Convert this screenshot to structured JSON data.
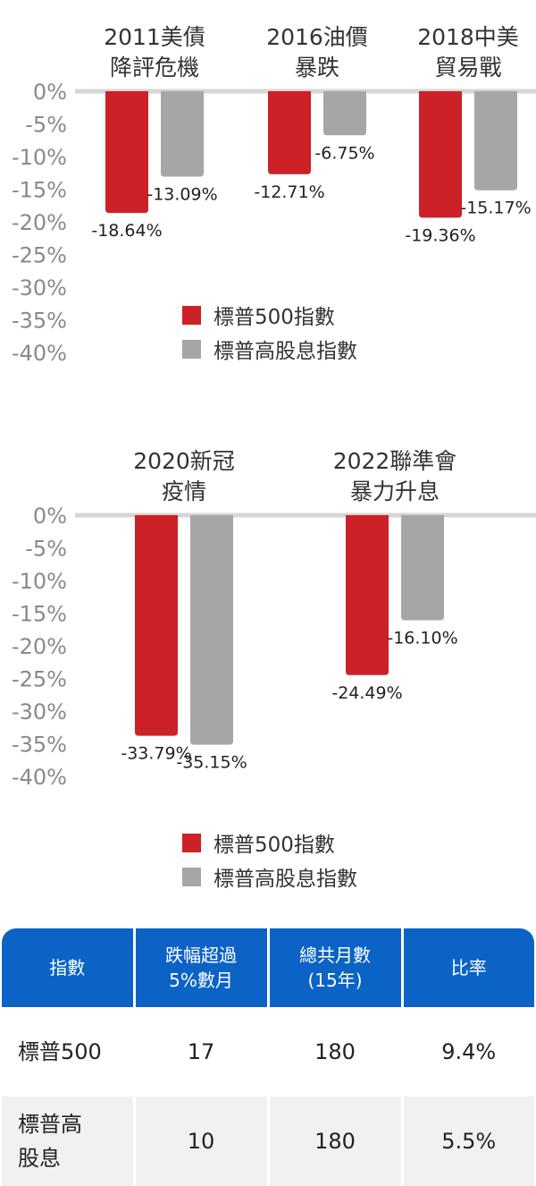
{
  "chart_data": [
    {
      "type": "bar",
      "categories": [
        "2011美債\n降評危機",
        "2016油價\n暴跌",
        "2018中美\n貿易戰"
      ],
      "series": [
        {
          "name": "標普500指數",
          "values": [
            -18.64,
            -12.71,
            -19.36
          ],
          "labels": [
            "-18.64%",
            "-12.71%",
            "-19.36%"
          ]
        },
        {
          "name": "標普高股息指數",
          "values": [
            -13.09,
            -6.75,
            -15.17
          ],
          "labels": [
            "-13.09%",
            "-6.75%",
            "-15.17%"
          ]
        }
      ],
      "y_ticks": [
        "0%",
        "-5%",
        "-10%",
        "-15%",
        "-20%",
        "-25%",
        "-30%",
        "-35%",
        "-40%"
      ],
      "ylim": [
        -40,
        0
      ],
      "legend": "bottom-center",
      "colors": {
        "sp500": "#cc2127",
        "high_dividend": "#a6a6a6"
      }
    },
    {
      "type": "bar",
      "categories": [
        "2020新冠\n疫情",
        "2022聯準會\n暴力升息"
      ],
      "series": [
        {
          "name": "標普500指數",
          "values": [
            -33.79,
            -24.49
          ],
          "labels": [
            "-33.79%",
            "-24.49%"
          ]
        },
        {
          "name": "標普高股息指數",
          "values": [
            -35.15,
            -16.1
          ],
          "labels": [
            "-35.15%",
            "-16.10%"
          ]
        }
      ],
      "y_ticks": [
        "0%",
        "-5%",
        "-10%",
        "-15%",
        "-20%",
        "-25%",
        "-30%",
        "-35%",
        "-40%"
      ],
      "ylim": [
        -40,
        0
      ],
      "legend": "bottom-center",
      "colors": {
        "sp500": "#cc2127",
        "high_dividend": "#a6a6a6"
      }
    }
  ],
  "legend": {
    "sp500": "標普500指數",
    "high_dividend": "標普高股息指數"
  },
  "table": {
    "headers": [
      "指數",
      "跌幅超過\n5%數月",
      "總共月數\n(15年)",
      "比率"
    ],
    "rows": [
      [
        "標普500",
        "17",
        "180",
        "9.4%"
      ],
      [
        "標普高\n股息",
        "10",
        "180",
        "5.5%"
      ]
    ],
    "header_color": "#0b63c5"
  }
}
